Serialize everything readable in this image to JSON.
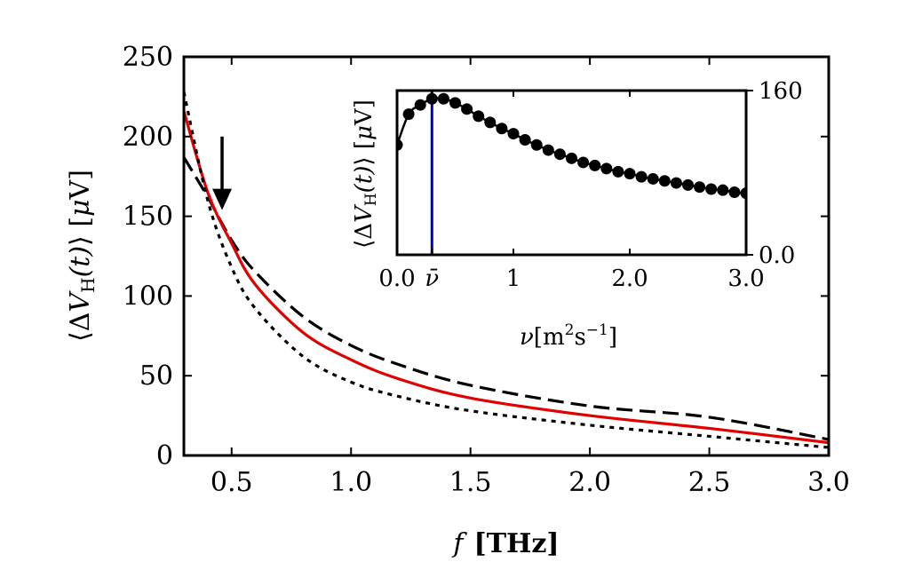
{
  "colors": {
    "red_curve": "#e00000",
    "black": "#000000",
    "blue_marker": "#0000cc"
  },
  "chart_data": [
    {
      "type": "line",
      "name": "main",
      "xlabel_var": "f",
      "xlabel_unit": "[THz]",
      "ylabel": "⟨ΔV_H(t)⟩ [μV]",
      "ylabel_parts": {
        "open": "⟨Δ",
        "V": "V",
        "sub": "H",
        "args": "(t)",
        "close": "⟩",
        "unit_open": " [",
        "mu": "μ",
        "unit_close": "V]"
      },
      "xlim": [
        0.3,
        3.0
      ],
      "ylim": [
        0,
        250
      ],
      "xticks": [
        0.5,
        1.0,
        1.5,
        2.0,
        2.5,
        3.0
      ],
      "xtick_labels": [
        "0.5",
        "1.0",
        "1.5",
        "2.0",
        "2.5",
        "3.0"
      ],
      "yticks": [
        0,
        50,
        100,
        150,
        200,
        250
      ],
      "ytick_labels": [
        "0",
        "50",
        "100",
        "150",
        "200",
        "250"
      ],
      "arrow": {
        "x": 0.46,
        "y_from": 200,
        "y_to": 155
      },
      "series": [
        {
          "name": "dashed",
          "style": "dashed",
          "color": "#000000",
          "x": [
            0.3,
            0.4,
            0.5,
            0.6,
            0.8,
            1.0,
            1.2,
            1.5,
            2.0,
            2.5,
            3.0
          ],
          "y": [
            187,
            162,
            135,
            115,
            87,
            69,
            57,
            44,
            31,
            24,
            10
          ]
        },
        {
          "name": "red solid",
          "style": "solid",
          "color": "#e00000",
          "x": [
            0.3,
            0.4,
            0.5,
            0.6,
            0.8,
            1.0,
            1.2,
            1.5,
            2.0,
            2.5,
            3.0
          ],
          "y": [
            216,
            165,
            133,
            107,
            77,
            60,
            48,
            36,
            25,
            17,
            8
          ]
        },
        {
          "name": "dotted",
          "style": "dotted",
          "color": "#000000",
          "x": [
            0.3,
            0.4,
            0.5,
            0.6,
            0.8,
            1.0,
            1.2,
            1.5,
            2.0,
            2.5,
            3.0
          ],
          "y": [
            228,
            160,
            118,
            92,
            62,
            46,
            37,
            28,
            19,
            12,
            5
          ]
        }
      ]
    },
    {
      "type": "scatter",
      "name": "inset",
      "xlabel": "ν[m²s⁻¹]",
      "xlabel_parts": {
        "nu": "ν",
        "open": "[m",
        "sup1": "2",
        "s": "s",
        "sup2": "−1",
        "close": "]"
      },
      "ylabel_parts": {
        "open": "⟨Δ",
        "V": "V",
        "sub": "H",
        "args": "(t)",
        "close": "⟩",
        "unit_open": " [",
        "mu": "μ",
        "unit_close": "V]"
      },
      "xlim": [
        0.0,
        3.0
      ],
      "ylim": [
        0.0,
        160
      ],
      "xtick_labels": [
        {
          "value": 0.0,
          "label": "0.0"
        },
        {
          "value": 0.3,
          "label": "ν̄"
        },
        {
          "value": 1.0,
          "label": "1"
        },
        {
          "value": 2.0,
          "label": "2.0"
        },
        {
          "value": 3.0,
          "label": "3.0"
        }
      ],
      "ytick_labels": [
        {
          "value": 0.0,
          "label": "0.0"
        },
        {
          "value": 160,
          "label": "160"
        }
      ],
      "marker_line_x": 0.3,
      "x": [
        0.0,
        0.1,
        0.2,
        0.3,
        0.4,
        0.5,
        0.6,
        0.7,
        0.8,
        0.9,
        1.0,
        1.1,
        1.2,
        1.3,
        1.4,
        1.5,
        1.6,
        1.7,
        1.8,
        1.9,
        2.0,
        2.1,
        2.2,
        2.3,
        2.4,
        2.5,
        2.6,
        2.7,
        2.8,
        2.9,
        3.0
      ],
      "y": [
        107,
        137,
        146,
        152,
        152,
        148,
        142,
        135,
        129,
        123,
        118,
        112,
        107,
        102,
        98,
        94,
        90,
        87,
        84,
        81,
        79,
        76,
        74,
        72,
        70,
        68,
        66,
        64,
        63,
        61,
        60
      ]
    }
  ]
}
